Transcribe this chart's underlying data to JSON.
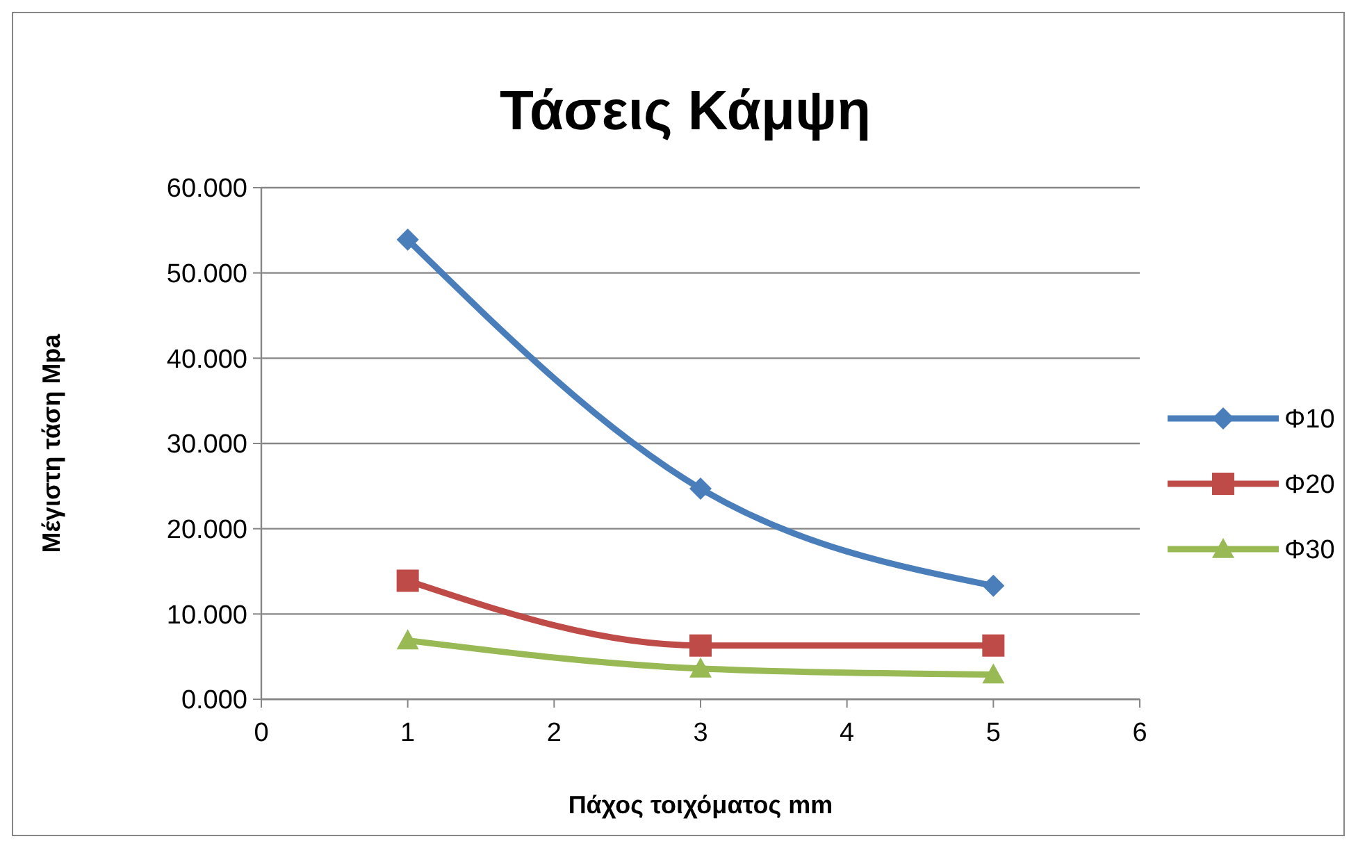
{
  "chart_data": {
    "type": "line",
    "title": "Τάσεις Κάμψη",
    "xlabel": "Πάχος τοιχόματος mm",
    "ylabel": "Μέγιστη τάση Mpa",
    "x": [
      1,
      3,
      5
    ],
    "series": [
      {
        "name": "Φ10",
        "color": "#4a7ebb",
        "values": [
          53.9,
          24.7,
          13.3
        ],
        "marker": "diamond"
      },
      {
        "name": "Φ20",
        "color": "#be4b48",
        "values": [
          13.9,
          6.3,
          6.3
        ],
        "marker": "square"
      },
      {
        "name": "Φ30",
        "color": "#98b954",
        "values": [
          6.9,
          3.6,
          2.9
        ],
        "marker": "triangle"
      }
    ],
    "xlim": [
      0,
      6
    ],
    "xticks": [
      0,
      1,
      2,
      3,
      4,
      5,
      6
    ],
    "ylim": [
      0,
      60
    ],
    "yticks": [
      {
        "value": 0,
        "label": "0.000"
      },
      {
        "value": 10,
        "label": "10.000"
      },
      {
        "value": 20,
        "label": "20.000"
      },
      {
        "value": 30,
        "label": "30.000"
      },
      {
        "value": 40,
        "label": "40.000"
      },
      {
        "value": 50,
        "label": "50.000"
      },
      {
        "value": 60,
        "label": "60.000"
      }
    ],
    "grid": "y",
    "legend": "right",
    "line_style": "solid"
  }
}
